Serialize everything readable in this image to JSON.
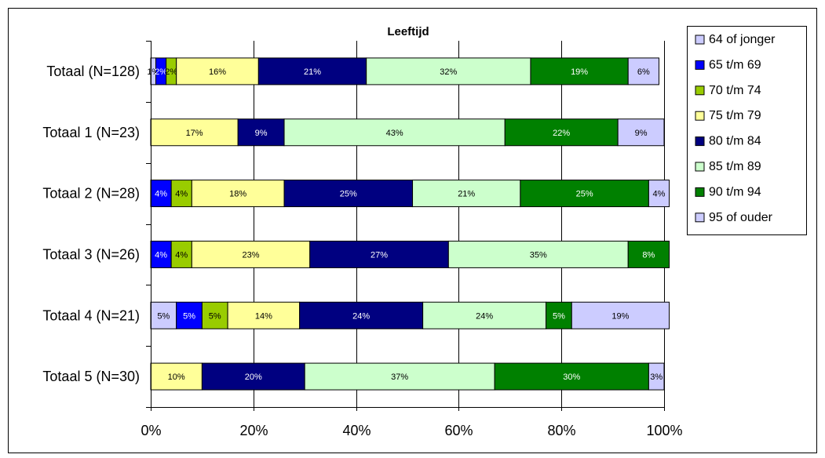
{
  "chart_data": {
    "type": "bar",
    "orientation": "horizontal",
    "stacked": "percent",
    "title": "Leeftijd",
    "xlabel": "",
    "ylabel": "",
    "xlim": [
      0,
      100
    ],
    "x_ticks": [
      "0%",
      "20%",
      "40%",
      "60%",
      "80%",
      "100%"
    ],
    "grid": "vertical",
    "legend_position": "right",
    "categories": [
      "Totaal (N=128)",
      "Totaal 1 (N=23)",
      "Totaal 2 (N=28)",
      "Totaal 3 (N=26)",
      "Totaal 4 (N=21)",
      "Totaal 5 (N=30)"
    ],
    "series": [
      {
        "name": "64 of jonger",
        "color": "#ccccff",
        "values": [
          1,
          0,
          0,
          0,
          5,
          0
        ],
        "labels": [
          "1%",
          "",
          "",
          "",
          "5%",
          ""
        ]
      },
      {
        "name": "65 t/m 69",
        "color": "#0000ff",
        "values": [
          2,
          0,
          4,
          4,
          5,
          0
        ],
        "labels": [
          "2%",
          "",
          "4%",
          "4%",
          "5%",
          ""
        ]
      },
      {
        "name": "70 t/m 74",
        "color": "#99cc00",
        "values": [
          2,
          0,
          4,
          4,
          5,
          0
        ],
        "labels": [
          "2%",
          "",
          "4%",
          "4%",
          "5%",
          ""
        ]
      },
      {
        "name": "75 t/m 79",
        "color": "#ffff99",
        "values": [
          16,
          17,
          18,
          23,
          14,
          10
        ],
        "labels": [
          "16%",
          "17%",
          "18%",
          "23%",
          "14%",
          "10%"
        ]
      },
      {
        "name": "80 t/m 84",
        "color": "#000080",
        "values": [
          21,
          9,
          25,
          27,
          24,
          20
        ],
        "labels": [
          "21%",
          "9%",
          "25%",
          "27%",
          "24%",
          "20%"
        ]
      },
      {
        "name": "85 t/m 89",
        "color": "#ccffcc",
        "values": [
          32,
          43,
          21,
          35,
          24,
          37
        ],
        "labels": [
          "32%",
          "43%",
          "21%",
          "35%",
          "24%",
          "37%"
        ]
      },
      {
        "name": "90 t/m 94",
        "color": "#008000",
        "values": [
          19,
          22,
          25,
          8,
          5,
          30
        ],
        "labels": [
          "19%",
          "22%",
          "25%",
          "8%",
          "5%",
          "30%"
        ]
      },
      {
        "name": "95 of ouder",
        "color": "#ccccff",
        "values": [
          6,
          9,
          4,
          0,
          19,
          3
        ],
        "labels": [
          "6%",
          "9%",
          "4%",
          "",
          "19%",
          "3%"
        ]
      }
    ],
    "label_text_colors": [
      "#000000",
      "#ffffff",
      "#000000",
      "#000000",
      "#ffffff",
      "#000000",
      "#ffffff",
      "#000000"
    ]
  }
}
